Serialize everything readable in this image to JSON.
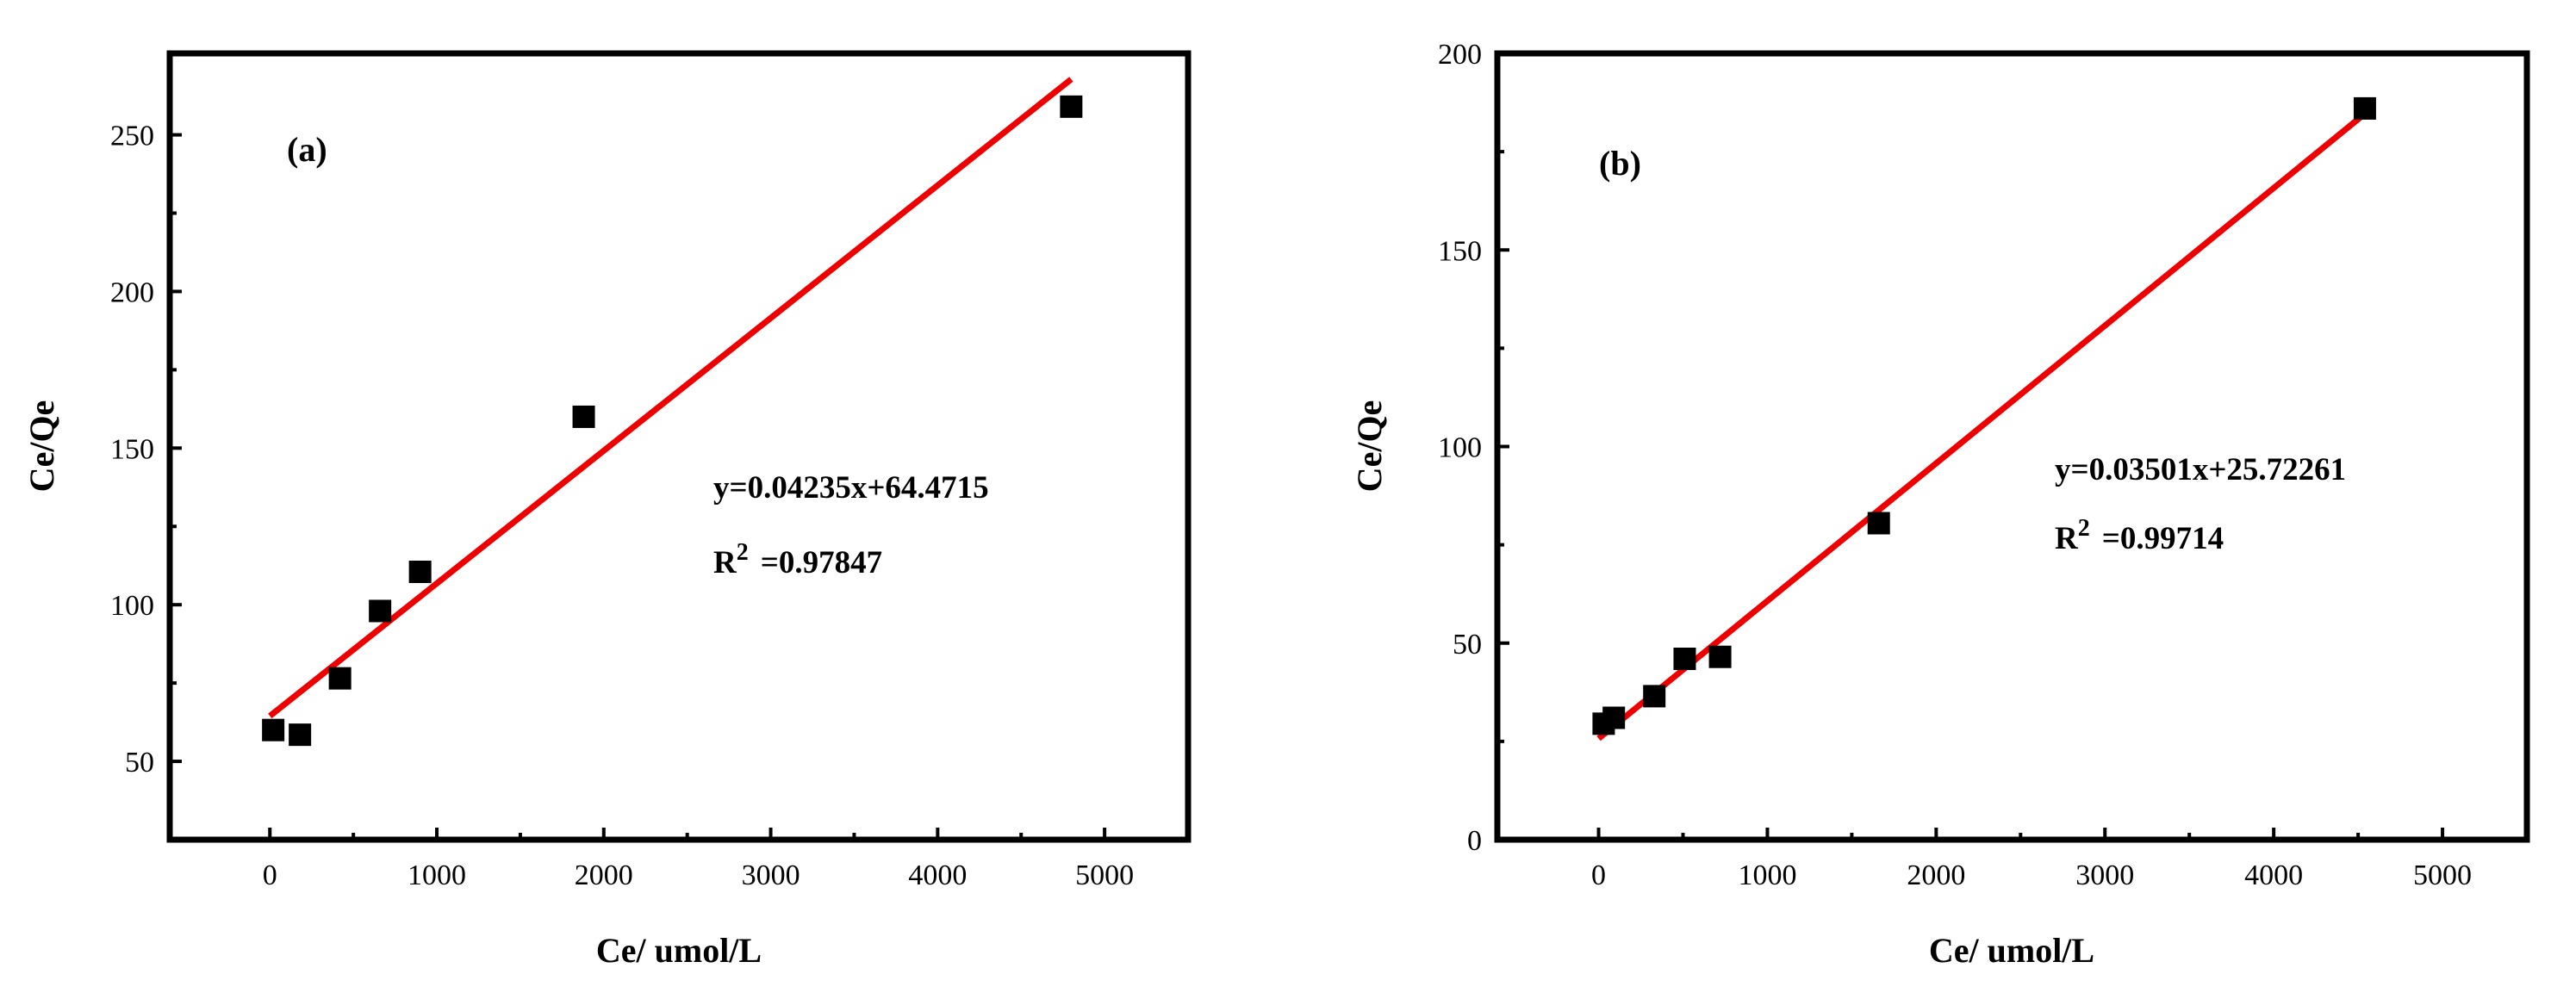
{
  "chart_data": [
    {
      "type": "scatter",
      "panel_label": "(a)",
      "xlabel": "Ce/ umol/L",
      "ylabel": "Ce/Qe",
      "xlim": [
        -600,
        5500
      ],
      "ylim": [
        25,
        276
      ],
      "xticks": [
        0,
        1000,
        2000,
        3000,
        4000,
        5000
      ],
      "yticks": [
        50,
        100,
        150,
        200,
        250
      ],
      "points": [
        {
          "x": 20,
          "y": 60
        },
        {
          "x": 180,
          "y": 58.5
        },
        {
          "x": 420,
          "y": 76.5
        },
        {
          "x": 660,
          "y": 98
        },
        {
          "x": 900,
          "y": 110.5
        },
        {
          "x": 1880,
          "y": 160
        },
        {
          "x": 4800,
          "y": 259
        }
      ],
      "fit": {
        "slope": 0.04235,
        "intercept": 64.4715,
        "x_range": [
          0,
          4800
        ],
        "color": "#ee0000"
      },
      "equation": "y=0.04235x+64.4715",
      "r2_prefix": "R",
      "r2_sup": "2",
      "r2_value": "=0.97847",
      "marker_color": "#000000",
      "grid": false
    },
    {
      "type": "scatter",
      "panel_label": "(b)",
      "xlabel": "Ce/ umol/L",
      "ylabel": "Ce/Qe",
      "xlim": [
        -600,
        5500
      ],
      "ylim": [
        0,
        200
      ],
      "xticks": [
        0,
        1000,
        2000,
        3000,
        4000,
        5000
      ],
      "yticks": [
        0,
        50,
        100,
        150,
        200
      ],
      "points": [
        {
          "x": 30,
          "y": 29.5
        },
        {
          "x": 90,
          "y": 31
        },
        {
          "x": 330,
          "y": 36.5
        },
        {
          "x": 510,
          "y": 46
        },
        {
          "x": 720,
          "y": 46.5
        },
        {
          "x": 1660,
          "y": 80.5
        },
        {
          "x": 4540,
          "y": 186
        }
      ],
      "fit": {
        "slope": 0.03501,
        "intercept": 25.72261,
        "x_range": [
          0,
          4540
        ],
        "color": "#ee0000"
      },
      "equation": "y=0.03501x+25.72261",
      "r2_prefix": "R",
      "r2_sup": "2",
      "r2_value": "=0.99714",
      "marker_color": "#000000",
      "grid": false
    }
  ]
}
